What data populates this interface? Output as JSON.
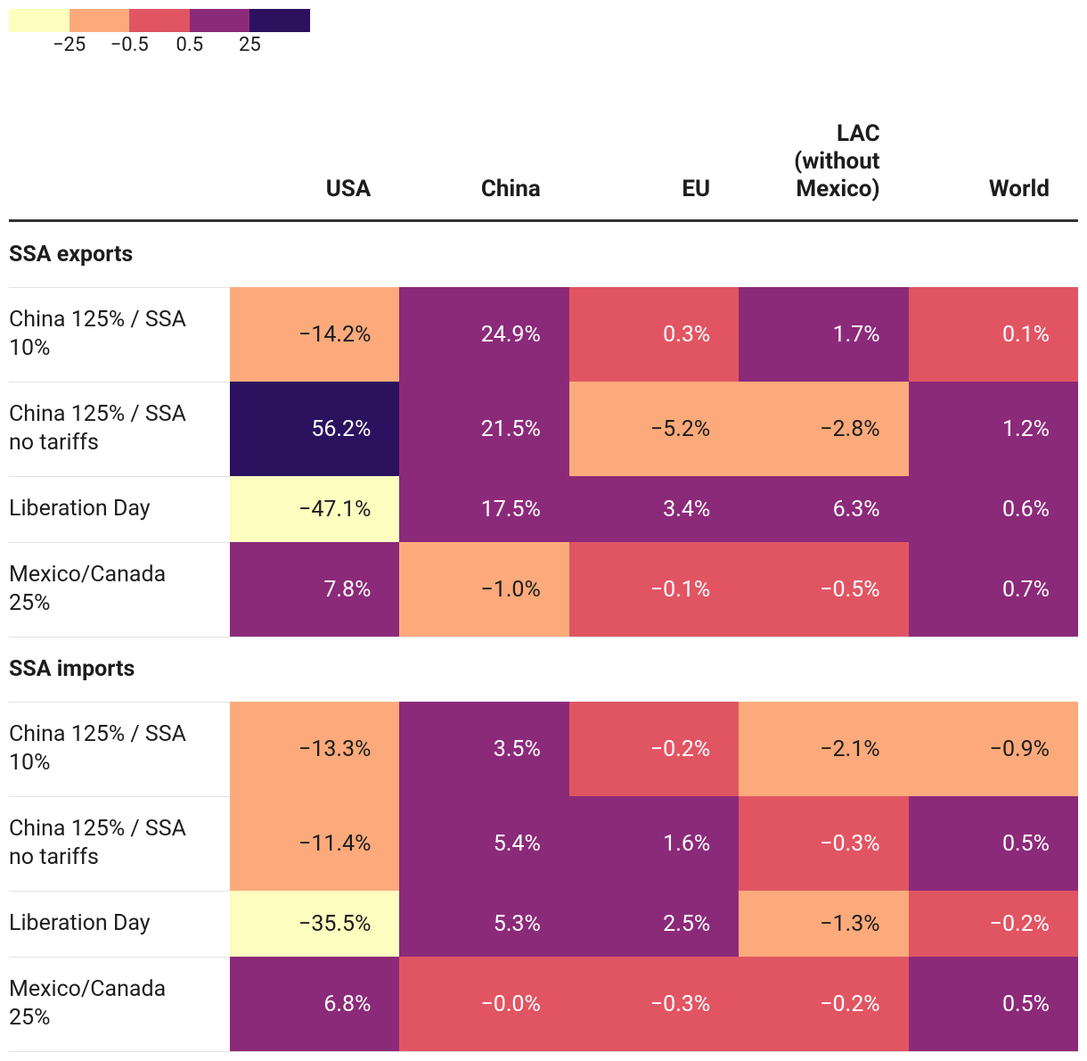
{
  "legend": {
    "colors": [
      "#fcfdbf",
      "#fcaa7b",
      "#e15563",
      "#8c2a7a",
      "#2c115f"
    ],
    "ticks": [
      {
        "value": -25,
        "label": "−25"
      },
      {
        "value": -0.5,
        "label": "−0.5"
      },
      {
        "value": 0.5,
        "label": "0.5"
      },
      {
        "value": 25,
        "label": "25"
      }
    ]
  },
  "table": {
    "columns": [
      "USA",
      "China",
      "EU",
      "LAC (without Mexico)",
      "World"
    ],
    "sections": [
      {
        "title": "SSA exports",
        "rows": [
          {
            "label": "China 125% / SSA 10%",
            "cells": [
              "−14.2%",
              "24.9%",
              "0.3%",
              "1.7%",
              "0.1%"
            ]
          },
          {
            "label": "China 125% / SSA no tariffs",
            "cells": [
              "56.2%",
              "21.5%",
              "−5.2%",
              "−2.8%",
              "1.2%"
            ]
          },
          {
            "label": "Liberation Day",
            "cells": [
              "−47.1%",
              "17.5%",
              "3.4%",
              "6.3%",
              "0.6%"
            ]
          },
          {
            "label": "Mexico/Canada 25%",
            "cells": [
              "7.8%",
              "−1.0%",
              "−0.1%",
              "−0.5%",
              "0.7%"
            ]
          }
        ]
      },
      {
        "title": "SSA imports",
        "rows": [
          {
            "label": "China 125% / SSA 10%",
            "cells": [
              "−13.3%",
              "3.5%",
              "−0.2%",
              "−2.1%",
              "−0.9%"
            ]
          },
          {
            "label": "China 125% / SSA no tariffs",
            "cells": [
              "−11.4%",
              "5.4%",
              "1.6%",
              "−0.3%",
              "0.5%"
            ]
          },
          {
            "label": "Liberation Day",
            "cells": [
              "−35.5%",
              "5.3%",
              "2.5%",
              "−1.3%",
              "−0.2%"
            ]
          },
          {
            "label": "Mexico/Canada 25%",
            "cells": [
              "6.8%",
              "−0.0%",
              "−0.3%",
              "−0.2%",
              "0.5%"
            ]
          }
        ]
      }
    ]
  }
}
